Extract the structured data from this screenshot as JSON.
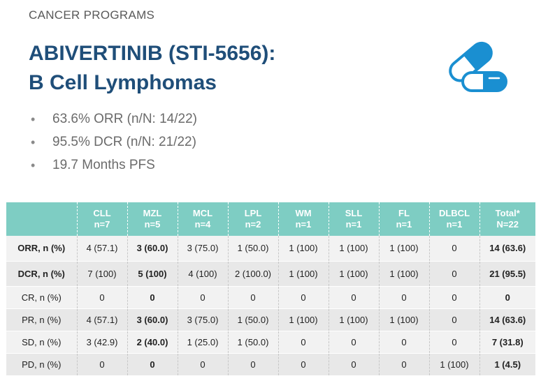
{
  "eyebrow": "CANCER PROGRAMS",
  "title_line1": "ABIVERTINIB (STI-5656):",
  "title_line2": "B Cell Lymphomas",
  "icon": "capsule-icon",
  "colors": {
    "title": "#1f4e79",
    "accent": "#1a8fd1",
    "header": "#7ecdc3"
  },
  "bullets": [
    "63.6% ORR (n/N: 14/22)",
    "95.5% DCR (n/N: 21/22)",
    "19.7 Months PFS"
  ],
  "table": {
    "headers": [
      {
        "l1": "",
        "l2": ""
      },
      {
        "l1": "CLL",
        "l2": "n=7"
      },
      {
        "l1": "MZL",
        "l2": "n=5"
      },
      {
        "l1": "MCL",
        "l2": "n=4"
      },
      {
        "l1": "LPL",
        "l2": "n=2"
      },
      {
        "l1": "WM",
        "l2": "n=1"
      },
      {
        "l1": "SLL",
        "l2": "n=1"
      },
      {
        "l1": "FL",
        "l2": "n=1"
      },
      {
        "l1": "DLBCL",
        "l2": "n=1"
      },
      {
        "l1": "Total*",
        "l2": "N=22"
      }
    ],
    "rows": [
      {
        "label": "ORR, n (%)",
        "cells": [
          "4 (57.1)",
          "3 (60.0)",
          "3 (75.0)",
          "1 (50.0)",
          "1 (100)",
          "1 (100)",
          "1 (100)",
          "0",
          "14 (63.6)"
        ]
      },
      {
        "label": "DCR, n (%)",
        "cells": [
          "7 (100)",
          "5 (100)",
          "4 (100)",
          "2 (100.0)",
          "1 (100)",
          "1 (100)",
          "1 (100)",
          "0",
          "21 (95.5)"
        ]
      },
      {
        "label": "CR, n (%)",
        "cells": [
          "0",
          "0",
          "0",
          "0",
          "0",
          "0",
          "0",
          "0",
          "0"
        ]
      },
      {
        "label": "PR, n (%)",
        "cells": [
          "4 (57.1)",
          "3 (60.0)",
          "3 (75.0)",
          "1 (50.0)",
          "1 (100)",
          "1 (100)",
          "1 (100)",
          "0",
          "14 (63.6)"
        ]
      },
      {
        "label": "SD, n (%)",
        "cells": [
          "3 (42.9)",
          "2 (40.0)",
          "1 (25.0)",
          "1 (50.0)",
          "0",
          "0",
          "0",
          "0",
          "7 (31.8)"
        ]
      },
      {
        "label": "PD, n (%)",
        "cells": [
          "0",
          "0",
          "0",
          "0",
          "0",
          "0",
          "0",
          "1 (100)",
          "1 (4.5)"
        ]
      }
    ]
  }
}
